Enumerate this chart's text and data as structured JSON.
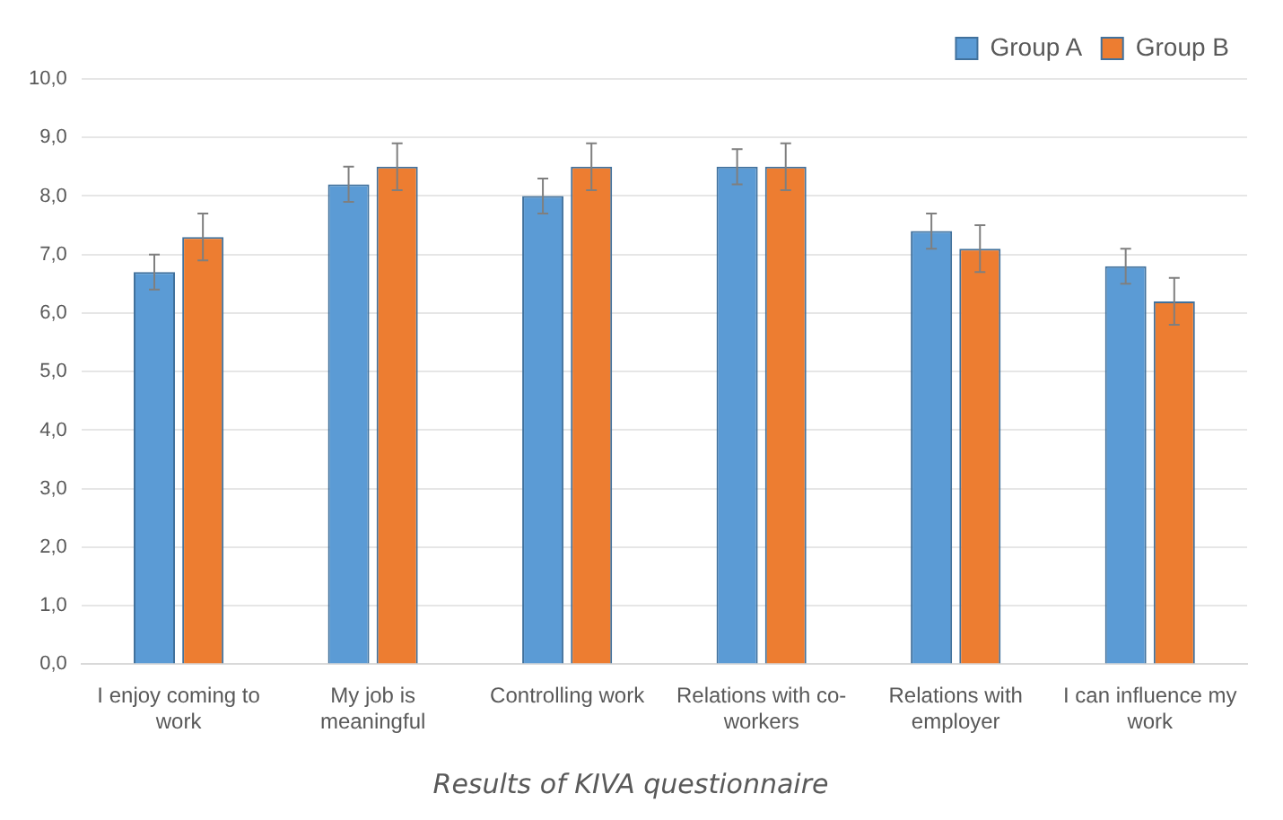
{
  "chart_data": {
    "type": "bar",
    "title": "Results of KIVA questionnaire",
    "categories": [
      "I enjoy coming to work",
      "My job is meaningful",
      "Controlling work",
      "Relations with co-workers",
      "Relations with employer",
      "I can influence my work"
    ],
    "series": [
      {
        "name": "Group A",
        "color": "#5b9bd5",
        "values": [
          6.7,
          8.2,
          8.0,
          8.5,
          7.4,
          6.8
        ],
        "errors": [
          0.3,
          0.3,
          0.3,
          0.3,
          0.3,
          0.3
        ]
      },
      {
        "name": "Group B",
        "color": "#ed7d31",
        "values": [
          7.3,
          8.5,
          8.5,
          8.5,
          7.1,
          6.2
        ],
        "errors": [
          0.4,
          0.4,
          0.4,
          0.4,
          0.4,
          0.4
        ]
      }
    ],
    "ylim": [
      0,
      10
    ],
    "yticks": [
      {
        "value": 0,
        "label": "0,0"
      },
      {
        "value": 1,
        "label": "1,0"
      },
      {
        "value": 2,
        "label": "2,0"
      },
      {
        "value": 3,
        "label": "3,0"
      },
      {
        "value": 4,
        "label": "4,0"
      },
      {
        "value": 5,
        "label": "5,0"
      },
      {
        "value": 6,
        "label": "6,0"
      },
      {
        "value": 7,
        "label": "7,0"
      },
      {
        "value": 8,
        "label": "8,0"
      },
      {
        "value": 9,
        "label": "9,0"
      },
      {
        "value": 10,
        "label": "10,0"
      }
    ],
    "grid": "y",
    "legend": "top right"
  }
}
